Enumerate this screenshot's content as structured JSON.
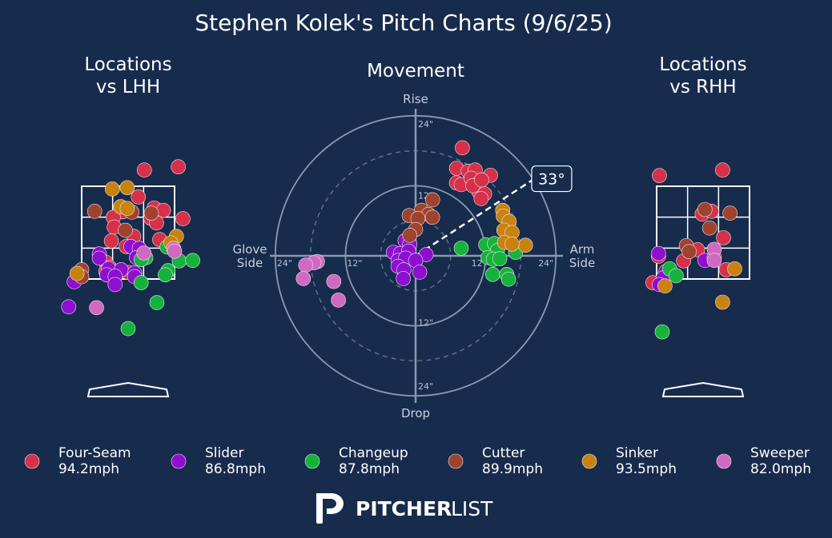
{
  "title": "Stephen Kolek's Pitch Charts (9/6/25)",
  "brand": {
    "logo_icon": "pitcherlist-p-logo-icon",
    "name_bold": "PITCHER",
    "name_light": "LIST"
  },
  "colors": {
    "background": "#172b4d",
    "Four-Seam": "#d7304a",
    "Slider": "#8e0fd0",
    "Changeup": "#16b33c",
    "Cutter": "#a0432e",
    "Sinker": "#c9820e",
    "Sweeper": "#d269c1"
  },
  "chart_data": [
    {
      "type": "scatter",
      "title": "Locations\nvs LHH",
      "title_lines": [
        "Locations",
        "vs LHH"
      ],
      "note": "Pitch locations vs left-handed hitters, catcher's view; strike zone 3x3 grid with home plate",
      "points": [
        {
          "pitch": "Four-Seam",
          "x": 0.35,
          "y": 3.85
        },
        {
          "pitch": "Four-Seam",
          "x": 1.08,
          "y": 3.92
        },
        {
          "pitch": "Four-Seam",
          "x": 0.22,
          "y": 3.27
        },
        {
          "pitch": "Four-Seam",
          "x": -0.12,
          "y": 2.95
        },
        {
          "pitch": "Four-Seam",
          "x": -0.32,
          "y": 2.83
        },
        {
          "pitch": "Four-Seam",
          "x": 0.56,
          "y": 3.03
        },
        {
          "pitch": "Four-Seam",
          "x": 0.76,
          "y": 2.98
        },
        {
          "pitch": "Four-Seam",
          "x": 0.49,
          "y": 2.81
        },
        {
          "pitch": "Four-Seam",
          "x": 0.61,
          "y": 2.71
        },
        {
          "pitch": "Four-Seam",
          "x": 1.18,
          "y": 2.8
        },
        {
          "pitch": "Four-Seam",
          "x": -0.3,
          "y": 2.62
        },
        {
          "pitch": "Four-Seam",
          "x": -0.36,
          "y": 2.32
        },
        {
          "pitch": "Four-Seam",
          "x": 0.12,
          "y": 2.42
        },
        {
          "pitch": "Four-Seam",
          "x": 0.68,
          "y": 2.35
        },
        {
          "pitch": "Four-Seam",
          "x": -0.04,
          "y": 2.2
        },
        {
          "pitch": "Four-Seam",
          "x": -0.48,
          "y": 1.86
        },
        {
          "pitch": "Four-Seam",
          "x": -0.4,
          "y": 1.75
        },
        {
          "pitch": "Four-Seam",
          "x": -0.48,
          "y": 1.66
        },
        {
          "pitch": "Four-Seam",
          "x": 0.0,
          "y": 1.64
        },
        {
          "pitch": "Four-Seam",
          "x": 0.92,
          "y": 2.18
        },
        {
          "pitch": "Slider",
          "x": -0.62,
          "y": 2.04
        },
        {
          "pitch": "Slider",
          "x": 0.06,
          "y": 2.2
        },
        {
          "pitch": "Slider",
          "x": 0.24,
          "y": 2.16
        },
        {
          "pitch": "Slider",
          "x": -0.62,
          "y": 1.95
        },
        {
          "pitch": "Slider",
          "x": 0.18,
          "y": 1.96
        },
        {
          "pitch": "Slider",
          "x": -0.42,
          "y": 1.72
        },
        {
          "pitch": "Slider",
          "x": -0.15,
          "y": 1.7
        },
        {
          "pitch": "Slider",
          "x": -0.46,
          "y": 1.59
        },
        {
          "pitch": "Slider",
          "x": -0.28,
          "y": 1.56
        },
        {
          "pitch": "Slider",
          "x": 0.14,
          "y": 1.63
        },
        {
          "pitch": "Slider",
          "x": 0.14,
          "y": 1.55
        },
        {
          "pitch": "Slider",
          "x": -1.08,
          "y": 1.56
        },
        {
          "pitch": "Slider",
          "x": -1.16,
          "y": 1.44
        },
        {
          "pitch": "Slider",
          "x": -0.28,
          "y": 1.38
        },
        {
          "pitch": "Slider",
          "x": -1.28,
          "y": 0.9
        },
        {
          "pitch": "Changeup",
          "x": 0.84,
          "y": 2.19
        },
        {
          "pitch": "Changeup",
          "x": 0.38,
          "y": 1.96
        },
        {
          "pitch": "Changeup",
          "x": 0.28,
          "y": 1.92
        },
        {
          "pitch": "Changeup",
          "x": 1.1,
          "y": 1.89
        },
        {
          "pitch": "Changeup",
          "x": 1.39,
          "y": 1.9
        },
        {
          "pitch": "Changeup",
          "x": 0.86,
          "y": 1.68
        },
        {
          "pitch": "Changeup",
          "x": 0.8,
          "y": 1.59
        },
        {
          "pitch": "Changeup",
          "x": 0.28,
          "y": 1.42
        },
        {
          "pitch": "Changeup",
          "x": 0.62,
          "y": 0.99
        },
        {
          "pitch": "Changeup",
          "x": 0.0,
          "y": 0.43
        },
        {
          "pitch": "Cutter",
          "x": -0.72,
          "y": 2.96
        },
        {
          "pitch": "Cutter",
          "x": 0.08,
          "y": 2.94
        },
        {
          "pitch": "Cutter",
          "x": 0.5,
          "y": 2.92
        },
        {
          "pitch": "Cutter",
          "x": -0.06,
          "y": 2.55
        },
        {
          "pitch": "Cutter",
          "x": -1.0,
          "y": 1.7
        },
        {
          "pitch": "Cutter",
          "x": -1.0,
          "y": 1.55
        },
        {
          "pitch": "Sinker",
          "x": -0.34,
          "y": 3.44
        },
        {
          "pitch": "Sinker",
          "x": -0.02,
          "y": 3.47
        },
        {
          "pitch": "Sinker",
          "x": -0.16,
          "y": 3.06
        },
        {
          "pitch": "Sinker",
          "x": -0.02,
          "y": 3.02
        },
        {
          "pitch": "Sinker",
          "x": 1.04,
          "y": 2.42
        },
        {
          "pitch": "Sinker",
          "x": 0.92,
          "y": 2.28
        },
        {
          "pitch": "Sinker",
          "x": -1.1,
          "y": 1.62
        },
        {
          "pitch": "Sweeper",
          "x": 0.34,
          "y": 2.06
        },
        {
          "pitch": "Sweeper",
          "x": 0.98,
          "y": 2.16
        },
        {
          "pitch": "Sweeper",
          "x": 1.0,
          "y": 2.1
        },
        {
          "pitch": "Sweeper",
          "x": -0.68,
          "y": 0.88
        }
      ]
    },
    {
      "type": "scatter",
      "title": "Movement",
      "note": "Pitch movement (inches), polar-style axes",
      "axis_labels": {
        "top": "Rise",
        "bottom": "Drop",
        "left": "Glove\nSide",
        "right": "Arm\nSide"
      },
      "axis_labels_lines": {
        "left": [
          "Glove",
          "Side"
        ],
        "right": [
          "Arm",
          "Side"
        ]
      },
      "rings": [
        12,
        24
      ],
      "ring_labels": [
        "12\"",
        "24\""
      ],
      "arm_angle_label": "33°",
      "arm_angle_deg": 33,
      "xlim": [
        -24,
        24
      ],
      "ylim": [
        -24,
        24
      ],
      "points": [
        {
          "pitch": "Four-Seam",
          "x": 8.0,
          "y": 18.5
        },
        {
          "pitch": "Four-Seam",
          "x": 7.0,
          "y": 15.0
        },
        {
          "pitch": "Four-Seam",
          "x": 9.0,
          "y": 14.5
        },
        {
          "pitch": "Four-Seam",
          "x": 10.2,
          "y": 14.7
        },
        {
          "pitch": "Four-Seam",
          "x": 12.8,
          "y": 13.8
        },
        {
          "pitch": "Four-Seam",
          "x": 7.0,
          "y": 12.5
        },
        {
          "pitch": "Four-Seam",
          "x": 7.8,
          "y": 12.2
        },
        {
          "pitch": "Four-Seam",
          "x": 9.5,
          "y": 13.3
        },
        {
          "pitch": "Four-Seam",
          "x": 10.8,
          "y": 12.4
        },
        {
          "pitch": "Four-Seam",
          "x": 10.8,
          "y": 11.0
        },
        {
          "pitch": "Four-Seam",
          "x": 11.8,
          "y": 10.6
        },
        {
          "pitch": "Four-Seam",
          "x": 11.2,
          "y": 9.8
        },
        {
          "pitch": "Four-Seam",
          "x": 9.8,
          "y": 12.0
        },
        {
          "pitch": "Four-Seam",
          "x": 11.3,
          "y": 13.0
        },
        {
          "pitch": "Slider",
          "x": -1.8,
          "y": 2.6
        },
        {
          "pitch": "Slider",
          "x": -1.0,
          "y": 2.0
        },
        {
          "pitch": "Slider",
          "x": -3.8,
          "y": 0.6
        },
        {
          "pitch": "Slider",
          "x": -2.6,
          "y": 0.4
        },
        {
          "pitch": "Slider",
          "x": -1.2,
          "y": 0.8
        },
        {
          "pitch": "Slider",
          "x": 1.8,
          "y": 0.2
        },
        {
          "pitch": "Slider",
          "x": -3.0,
          "y": -0.8
        },
        {
          "pitch": "Slider",
          "x": -1.7,
          "y": -0.4
        },
        {
          "pitch": "Slider",
          "x": 0.0,
          "y": -0.8
        },
        {
          "pitch": "Slider",
          "x": -3.0,
          "y": -1.8
        },
        {
          "pitch": "Slider",
          "x": -2.0,
          "y": -2.4
        },
        {
          "pitch": "Slider",
          "x": 0.7,
          "y": -2.8
        },
        {
          "pitch": "Slider",
          "x": -2.1,
          "y": -3.9
        },
        {
          "pitch": "Changeup",
          "x": 7.8,
          "y": 1.3
        },
        {
          "pitch": "Changeup",
          "x": 12.0,
          "y": 1.9
        },
        {
          "pitch": "Changeup",
          "x": 13.5,
          "y": 2.1
        },
        {
          "pitch": "Changeup",
          "x": 14.0,
          "y": 0.9
        },
        {
          "pitch": "Changeup",
          "x": 17.1,
          "y": 0.6
        },
        {
          "pitch": "Changeup",
          "x": 12.4,
          "y": -0.3
        },
        {
          "pitch": "Changeup",
          "x": 13.3,
          "y": -0.6
        },
        {
          "pitch": "Changeup",
          "x": 14.4,
          "y": -0.5
        },
        {
          "pitch": "Changeup",
          "x": 13.2,
          "y": -3.2
        },
        {
          "pitch": "Changeup",
          "x": 15.6,
          "y": -3.2
        },
        {
          "pitch": "Changeup",
          "x": 15.9,
          "y": -4.0
        },
        {
          "pitch": "Cutter",
          "x": 2.9,
          "y": 9.6
        },
        {
          "pitch": "Cutter",
          "x": 1.0,
          "y": 7.8
        },
        {
          "pitch": "Cutter",
          "x": 2.2,
          "y": 7.1
        },
        {
          "pitch": "Cutter",
          "x": -1.1,
          "y": 6.9
        },
        {
          "pitch": "Cutter",
          "x": 0.4,
          "y": 6.4
        },
        {
          "pitch": "Cutter",
          "x": 2.9,
          "y": 6.6
        },
        {
          "pitch": "Cutter",
          "x": 0.0,
          "y": 4.5
        },
        {
          "pitch": "Cutter",
          "x": -1.0,
          "y": 3.5
        },
        {
          "pitch": "Sinker",
          "x": 14.9,
          "y": 7.8
        },
        {
          "pitch": "Sinker",
          "x": 15.0,
          "y": 6.8
        },
        {
          "pitch": "Sinker",
          "x": 16.0,
          "y": 5.9
        },
        {
          "pitch": "Sinker",
          "x": 15.1,
          "y": 4.4
        },
        {
          "pitch": "Sinker",
          "x": 16.5,
          "y": 4.0
        },
        {
          "pitch": "Sinker",
          "x": 15.2,
          "y": 2.3
        },
        {
          "pitch": "Sinker",
          "x": 18.8,
          "y": 1.8
        },
        {
          "pitch": "Sinker",
          "x": 16.5,
          "y": 2.0
        },
        {
          "pitch": "Sweeper",
          "x": -16.8,
          "y": -1.0
        },
        {
          "pitch": "Sweeper",
          "x": -17.4,
          "y": -1.2
        },
        {
          "pitch": "Sweeper",
          "x": -18.8,
          "y": -1.6
        },
        {
          "pitch": "Sweeper",
          "x": -19.2,
          "y": -3.9
        },
        {
          "pitch": "Sweeper",
          "x": -14.0,
          "y": -4.4
        },
        {
          "pitch": "Sweeper",
          "x": -13.2,
          "y": -7.6
        }
      ]
    },
    {
      "type": "scatter",
      "title": "Locations\nvs RHH",
      "title_lines": [
        "Locations",
        "vs RHH"
      ],
      "note": "Pitch locations vs right-handed hitters, catcher's view; strike zone 3x3 grid with home plate",
      "points": [
        {
          "pitch": "Four-Seam",
          "x": -0.94,
          "y": 3.73
        },
        {
          "pitch": "Four-Seam",
          "x": 0.42,
          "y": 3.85
        },
        {
          "pitch": "Four-Seam",
          "x": -0.02,
          "y": 2.9
        },
        {
          "pitch": "Four-Seam",
          "x": 0.18,
          "y": 2.96
        },
        {
          "pitch": "Four-Seam",
          "x": 0.44,
          "y": 2.39
        },
        {
          "pitch": "Four-Seam",
          "x": -0.12,
          "y": 2.13
        },
        {
          "pitch": "Four-Seam",
          "x": -0.42,
          "y": 1.89
        },
        {
          "pitch": "Four-Seam",
          "x": -0.96,
          "y": 1.99
        },
        {
          "pitch": "Four-Seam",
          "x": 0.5,
          "y": 1.7
        },
        {
          "pitch": "Four-Seam",
          "x": -1.08,
          "y": 1.42
        },
        {
          "pitch": "Slider",
          "x": -0.96,
          "y": 2.05
        },
        {
          "pitch": "Slider",
          "x": -0.8,
          "y": 1.66
        },
        {
          "pitch": "Slider",
          "x": -0.86,
          "y": 1.52
        },
        {
          "pitch": "Slider",
          "x": -0.94,
          "y": 1.38
        },
        {
          "pitch": "Slider",
          "x": 0.04,
          "y": 1.9
        },
        {
          "pitch": "Changeup",
          "x": -0.72,
          "y": 1.72
        },
        {
          "pitch": "Changeup",
          "x": -0.58,
          "y": 1.57
        },
        {
          "pitch": "Changeup",
          "x": -0.88,
          "y": 0.36
        },
        {
          "pitch": "Cutter",
          "x": 0.04,
          "y": 3.0
        },
        {
          "pitch": "Cutter",
          "x": 0.14,
          "y": 2.6
        },
        {
          "pitch": "Cutter",
          "x": 0.58,
          "y": 2.92
        },
        {
          "pitch": "Cutter",
          "x": -0.36,
          "y": 2.22
        },
        {
          "pitch": "Cutter",
          "x": -0.3,
          "y": 2.09
        },
        {
          "pitch": "Cutter",
          "x": 0.24,
          "y": 1.97
        },
        {
          "pitch": "Sinker",
          "x": 0.68,
          "y": 1.72
        },
        {
          "pitch": "Sinker",
          "x": -0.82,
          "y": 1.35
        },
        {
          "pitch": "Sinker",
          "x": 0.42,
          "y": 1.0
        },
        {
          "pitch": "Sweeper",
          "x": 0.24,
          "y": 2.14
        },
        {
          "pitch": "Sweeper",
          "x": 0.24,
          "y": 1.9
        }
      ]
    }
  ],
  "legend": [
    {
      "pitch": "Four-Seam",
      "speed": "94.2mph"
    },
    {
      "pitch": "Slider",
      "speed": "86.8mph"
    },
    {
      "pitch": "Changeup",
      "speed": "87.8mph"
    },
    {
      "pitch": "Cutter",
      "speed": "89.9mph"
    },
    {
      "pitch": "Sinker",
      "speed": "93.5mph"
    },
    {
      "pitch": "Sweeper",
      "speed": "82.0mph"
    }
  ]
}
